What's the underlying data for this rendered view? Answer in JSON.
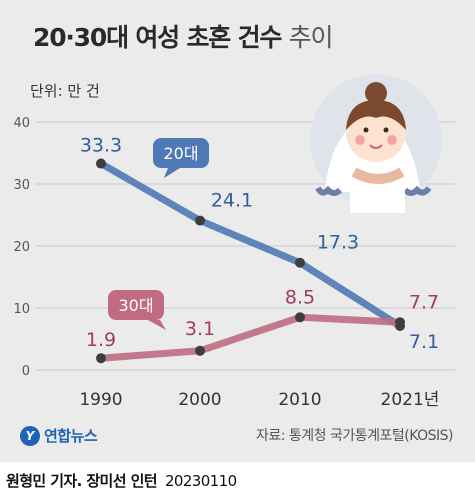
{
  "title_bold": "20·30대 여성 초혼 건수",
  "title_light": "추이",
  "unit": "단위: 만 건",
  "source": "자료: 통계청 국가통계포털(KOSIS)",
  "logo_text": "연합뉴스",
  "credit": "원형민 기자. 장미선 인턴",
  "date": "20230110",
  "chart_data": {
    "type": "line",
    "categories": [
      "1990",
      "2000",
      "2010",
      "2021년"
    ],
    "ylim": [
      0,
      40
    ],
    "yticks": [
      "0",
      "10",
      "20",
      "30",
      "40"
    ],
    "grid": true,
    "series": [
      {
        "name": "20대",
        "values": [
          33.3,
          24.1,
          17.3,
          7.1
        ],
        "labels": [
          "33.3",
          "24.1",
          "17.3",
          "7.1"
        ],
        "color": "#4f79b5",
        "label_color": "#2f5f9e"
      },
      {
        "name": "30대",
        "values": [
          1.9,
          3.1,
          8.5,
          7.7
        ],
        "labels": [
          "1.9",
          "3.1",
          "8.5",
          "7.7"
        ],
        "color": "#c06b82",
        "label_color": "#9e3e58"
      }
    ]
  }
}
